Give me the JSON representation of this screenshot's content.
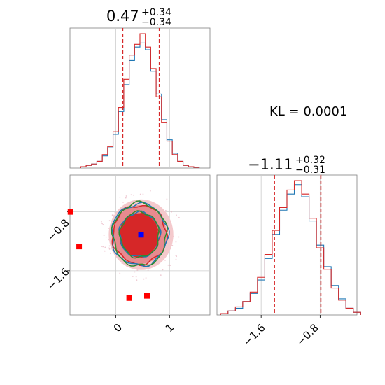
{
  "chart_data": [
    {
      "panel": "marginal-1",
      "type": "histogram",
      "title_value": "0.47",
      "title_plus": "+0.34",
      "title_minus": "−0.34",
      "xlim": [
        -0.85,
        1.75
      ],
      "quantile_lines": [
        0.13,
        0.81
      ],
      "x": [
        -0.6,
        -0.5,
        -0.4,
        -0.3,
        -0.2,
        -0.1,
        0.0,
        0.1,
        0.2,
        0.3,
        0.4,
        0.5,
        0.6,
        0.7,
        0.8,
        0.9,
        1.0,
        1.1,
        1.2,
        1.3,
        1.4,
        1.5
      ],
      "series": [
        {
          "color": "#1f77b4",
          "values": [
            0.01,
            0.02,
            0.03,
            0.05,
            0.09,
            0.15,
            0.25,
            0.42,
            0.62,
            0.8,
            0.9,
            0.93,
            0.88,
            0.72,
            0.55,
            0.36,
            0.21,
            0.11,
            0.05,
            0.02,
            0.01,
            0.005
          ]
        },
        {
          "color": "#d62728",
          "values": [
            0.01,
            0.02,
            0.03,
            0.05,
            0.1,
            0.16,
            0.27,
            0.45,
            0.66,
            0.84,
            0.92,
            1.0,
            0.9,
            0.74,
            0.53,
            0.34,
            0.2,
            0.1,
            0.05,
            0.02,
            0.01,
            0.005
          ]
        }
      ]
    },
    {
      "panel": "marginal-2",
      "type": "histogram",
      "title_value": "−1.11",
      "title_plus": "+0.32",
      "title_minus": "−0.31",
      "xlim": [
        -2.2,
        -0.3
      ],
      "xticks": [
        "−1.6",
        "−0.8"
      ],
      "xtick_values": [
        -1.6,
        -0.8
      ],
      "quantile_lines": [
        -1.42,
        -0.79
      ],
      "x": [
        -2.1,
        -2.0,
        -1.9,
        -1.8,
        -1.7,
        -1.6,
        -1.5,
        -1.4,
        -1.3,
        -1.2,
        -1.1,
        -1.0,
        -0.9,
        -0.8,
        -0.7,
        -0.6,
        -0.5,
        -0.4,
        -0.3
      ],
      "series": [
        {
          "color": "#1f77b4",
          "values": [
            0.01,
            0.03,
            0.05,
            0.1,
            0.16,
            0.26,
            0.42,
            0.6,
            0.78,
            0.9,
            0.97,
            0.88,
            0.7,
            0.52,
            0.36,
            0.22,
            0.12,
            0.05,
            0.02
          ]
        },
        {
          "color": "#d62728",
          "values": [
            0.01,
            0.03,
            0.06,
            0.1,
            0.17,
            0.28,
            0.45,
            0.63,
            0.8,
            0.93,
            1.0,
            0.9,
            0.72,
            0.5,
            0.34,
            0.2,
            0.11,
            0.05,
            0.02
          ]
        }
      ]
    },
    {
      "panel": "joint",
      "type": "contour",
      "xlim": [
        -0.85,
        1.75
      ],
      "ylim": [
        -2.2,
        -0.3
      ],
      "xticks": [
        "0",
        "1"
      ],
      "xtick_values": [
        0,
        1
      ],
      "yticks": [
        "−0.8",
        "−1.6"
      ],
      "ytick_values": [
        -0.8,
        -1.6
      ],
      "center": {
        "x": 0.47,
        "y": -1.11,
        "color": "#0000ff"
      },
      "markers": [
        {
          "x": -0.68,
          "y": -1.27,
          "color": "#ff0000"
        },
        {
          "x": -0.84,
          "y": -0.8,
          "color": "#ff0000"
        },
        {
          "x": 0.25,
          "y": -1.97,
          "color": "#ff0000"
        },
        {
          "x": 0.58,
          "y": -1.94,
          "color": "#ff0000"
        }
      ],
      "contour_levels": [
        {
          "color": "#d62728",
          "rx": 0.5,
          "ry": 0.4
        },
        {
          "color": "#1f77b4",
          "rx": 0.52,
          "ry": 0.42
        },
        {
          "color": "#2e8b2e",
          "rx": 0.5,
          "ry": 0.43
        }
      ]
    }
  ],
  "annotation": {
    "kl_text": "KL = 0.0001"
  }
}
